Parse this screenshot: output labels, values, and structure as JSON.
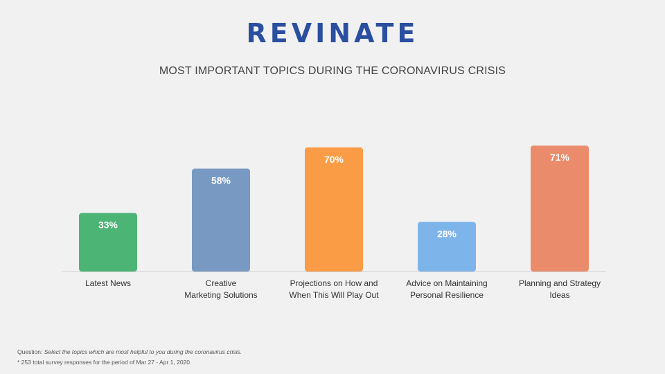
{
  "header": {
    "logo_text": "REVINATE",
    "title": "MOST IMPORTANT TOPICS DURING THE CORONAVIRUS CRISIS"
  },
  "chart_data": {
    "type": "bar",
    "categories": [
      [
        "Latest News"
      ],
      [
        "Creative",
        "Marketing Solutions"
      ],
      [
        "Projections on How and",
        "When This Will Play Out"
      ],
      [
        "Advice on Maintaining",
        "Personal Resilience"
      ],
      [
        "Planning and Strategy",
        "Ideas"
      ]
    ],
    "values": [
      33,
      58,
      70,
      28,
      71
    ],
    "value_labels": [
      "33%",
      "58%",
      "70%",
      "28%",
      "71%"
    ],
    "colors": [
      "#4cb474",
      "#7899c2",
      "#f99c45",
      "#7db5ea",
      "#ea8c6c"
    ],
    "title": "MOST IMPORTANT TOPICS DURING THE CORONAVIRUS CRISIS",
    "ylim": [
      0,
      100
    ],
    "grid": false,
    "legend": "none"
  },
  "footer": {
    "question_prefix": "Question: ",
    "question_text": "Select the topics which are most helpful to you during the coronavirus crisis.",
    "note": "* 253 total survey responses for the period of Mar 27 - Apr 1, 2020."
  }
}
